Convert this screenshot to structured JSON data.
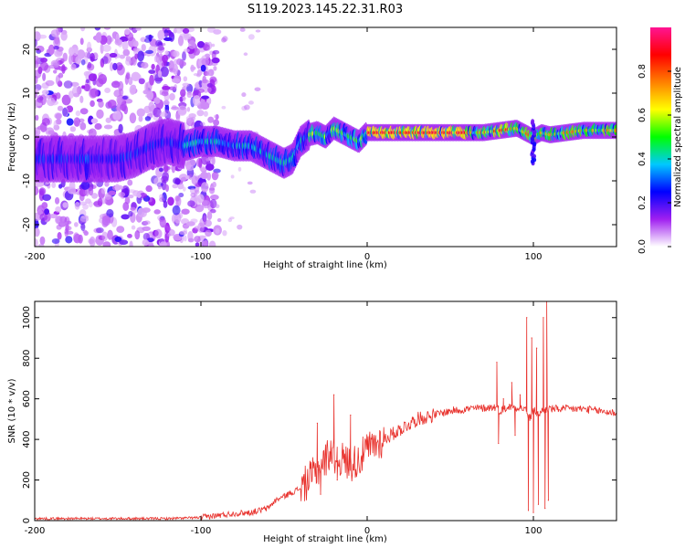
{
  "title": "S119.2023.145.22.31.R03",
  "charts": {
    "spectrogram": {
      "type": "heatmap",
      "xlabel": "Height of straight line (km)",
      "ylabel": "Frequency (Hz)",
      "xlim": [
        -200,
        150
      ],
      "ylim": [
        -25,
        25
      ],
      "x_ticks": [
        "-200",
        "-100",
        "0",
        "100"
      ],
      "x_tick_values": [
        -200,
        -100,
        0,
        100
      ],
      "y_ticks": [
        "-20",
        "-10",
        "0",
        "10",
        "20"
      ],
      "y_tick_values": [
        -20,
        -10,
        0,
        10,
        20
      ],
      "colorbar": {
        "label": "Normalized spectral amplitude",
        "range": [
          0,
          1
        ],
        "ticks": [
          "0.0",
          "0.2",
          "0.4",
          "0.6",
          "0.8"
        ],
        "tick_values": [
          0.0,
          0.2,
          0.4,
          0.6,
          0.8
        ],
        "colormap": [
          "#ffffff",
          "#a020f0",
          "#0000ff",
          "#00c8ff",
          "#00ff00",
          "#ffff00",
          "#ff8000",
          "#ff0000",
          "#ff1493"
        ]
      },
      "ridge": {
        "x": [
          -195,
          -180,
          -165,
          -150,
          -140,
          -130,
          -120,
          -110,
          -100,
          -90,
          -80,
          -70,
          -60,
          -55,
          -50,
          -45,
          -40,
          -35,
          -30,
          -25,
          -20,
          -15,
          -10,
          -5,
          0,
          10,
          30,
          50,
          70,
          80,
          90,
          95,
          100,
          105,
          110,
          130,
          150
        ],
        "y": [
          -5,
          -5,
          -5,
          -5,
          -4,
          -2,
          -1,
          -2,
          -1,
          -1,
          -2,
          -2,
          -4,
          -5,
          -6,
          -5,
          -1,
          0.5,
          1,
          0,
          2,
          1,
          0,
          -1,
          1,
          1,
          1,
          1,
          1,
          1.5,
          2,
          1,
          0,
          1,
          0.5,
          1.5,
          1.5
        ]
      }
    },
    "snr": {
      "type": "line",
      "xlabel": "Height of straight line (km)",
      "ylabel": "SNR (10 * v/v)",
      "xlim": [
        -200,
        150
      ],
      "ylim": [
        0,
        1080
      ],
      "x_ticks": [
        "-200",
        "-100",
        "0",
        "100"
      ],
      "x_tick_values": [
        -200,
        -100,
        0,
        100
      ],
      "y_ticks": [
        "0",
        "200",
        "400",
        "600",
        "800",
        "1000"
      ],
      "y_tick_values": [
        0,
        200,
        400,
        600,
        800,
        1000
      ],
      "color": "#e8302b",
      "series": [
        {
          "x": [
            -200,
            -180,
            -160,
            -140,
            -120,
            -100,
            -90,
            -80,
            -70,
            -60,
            -55,
            -50,
            -45,
            -40,
            -35,
            -30,
            -25,
            -22,
            -20,
            -15,
            -10,
            -5,
            0,
            10,
            20,
            30,
            40,
            50,
            60,
            70,
            78,
            80,
            85,
            90,
            95,
            98,
            100,
            103,
            105,
            108,
            110,
            120,
            130,
            140,
            150
          ],
          "values": [
            10,
            10,
            10,
            10,
            10,
            15,
            25,
            35,
            40,
            60,
            100,
            120,
            140,
            160,
            200,
            250,
            300,
            350,
            320,
            300,
            280,
            300,
            350,
            400,
            450,
            500,
            520,
            540,
            550,
            555,
            560,
            540,
            560,
            560,
            550,
            500,
            550,
            520,
            540,
            550,
            550,
            550,
            550,
            540,
            530
          ]
        }
      ],
      "spikes": [
        {
          "x": -30,
          "value": 480
        },
        {
          "x": -28,
          "value": 130
        },
        {
          "x": -20,
          "value": 620
        },
        {
          "x": -18,
          "value": 200
        },
        {
          "x": -10,
          "value": 520
        },
        {
          "x": -8,
          "value": 250
        },
        {
          "x": 78,
          "value": 780
        },
        {
          "x": 79,
          "value": 380
        },
        {
          "x": 82,
          "value": 600
        },
        {
          "x": 87,
          "value": 680
        },
        {
          "x": 89,
          "value": 420
        },
        {
          "x": 92,
          "value": 620
        },
        {
          "x": 96,
          "value": 1000
        },
        {
          "x": 97,
          "value": 50
        },
        {
          "x": 99,
          "value": 900
        },
        {
          "x": 100,
          "value": 40
        },
        {
          "x": 102,
          "value": 850
        },
        {
          "x": 103,
          "value": 80
        },
        {
          "x": 106,
          "value": 1000
        },
        {
          "x": 107,
          "value": 60
        },
        {
          "x": 108,
          "value": 1080
        },
        {
          "x": 109,
          "value": 100
        }
      ]
    }
  }
}
